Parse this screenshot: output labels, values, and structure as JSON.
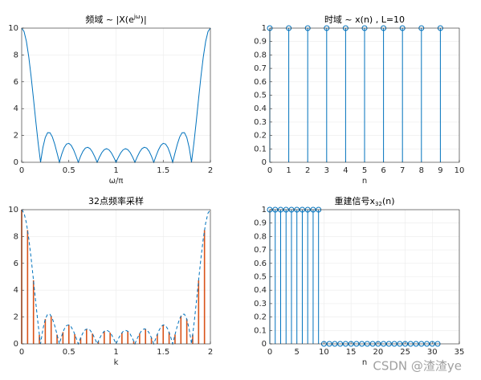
{
  "chart_data": [
    {
      "type": "line",
      "title": [
        "频域 ~ |X(e",
        "jω",
        ")|"
      ],
      "xlabel": "ω/π",
      "xlim": [
        0,
        2
      ],
      "xticks": [
        0,
        0.5,
        1,
        1.5,
        2
      ],
      "ylim": [
        0,
        10
      ],
      "yticks": [
        0,
        2,
        4,
        6,
        8,
        10
      ],
      "grid": true,
      "series": [
        {
          "type": "line",
          "color": "#0072BD",
          "linestyle": "solid",
          "x": [
            0,
            0.025,
            0.05,
            0.075,
            0.1,
            0.125,
            0.15,
            0.175,
            0.2,
            0.225,
            0.25,
            0.275,
            0.3,
            0.325,
            0.35,
            0.375,
            0.4,
            0.425,
            0.45,
            0.475,
            0.5,
            0.525,
            0.55,
            0.575,
            0.6,
            0.625,
            0.65,
            0.675,
            0.7,
            0.725,
            0.75,
            0.775,
            0.8,
            0.825,
            0.85,
            0.875,
            0.9,
            0.925,
            0.95,
            0.975,
            1,
            1.025,
            1.05,
            1.075,
            1.1,
            1.125,
            1.15,
            1.175,
            1.2,
            1.225,
            1.25,
            1.275,
            1.3,
            1.325,
            1.35,
            1.375,
            1.4,
            1.425,
            1.45,
            1.475,
            1.5,
            1.525,
            1.55,
            1.575,
            1.6,
            1.625,
            1.65,
            1.675,
            1.7,
            1.725,
            1.75,
            1.775,
            1.8,
            1.825,
            1.85,
            1.875,
            1.9,
            1.925,
            1.95,
            1.975,
            2
          ],
          "values": [
            10,
            9.748,
            9.012,
            7.86,
            6.392,
            4.736,
            3.029,
            1.41,
            0,
            1.106,
            1.848,
            2.207,
            2.203,
            1.891,
            1.353,
            0.689,
            0,
            0.618,
            1.089,
            1.361,
            1.414,
            1.258,
            0.93,
            0.487,
            0,
            0.46,
            0.829,
            1.059,
            1.122,
            1.017,
            0.765,
            0.408,
            0,
            0.398,
            0.727,
            0.942,
            1.012,
            0.93,
            0.709,
            0.383,
            0,
            0.383,
            0.709,
            0.93,
            1.012,
            0.942,
            0.727,
            0.398,
            0,
            0.408,
            0.765,
            1.017,
            1.122,
            1.059,
            0.829,
            0.46,
            0,
            0.487,
            0.93,
            1.258,
            1.414,
            1.361,
            1.089,
            0.618,
            0,
            0.689,
            1.353,
            1.891,
            2.203,
            2.207,
            1.848,
            1.106,
            0,
            1.41,
            3.029,
            4.736,
            6.392,
            7.86,
            9.012,
            9.748,
            10
          ]
        }
      ]
    },
    {
      "type": "stem",
      "title": [
        "时域 ~ x(n) , L=10"
      ],
      "xlabel": "n",
      "xlim": [
        0,
        10
      ],
      "xticks": [
        0,
        1,
        2,
        3,
        4,
        5,
        6,
        7,
        8,
        9,
        10
      ],
      "ylim": [
        0,
        1
      ],
      "yticks": [
        0,
        0.1,
        0.2,
        0.3,
        0.4,
        0.5,
        0.6,
        0.7,
        0.8,
        0.9,
        1
      ],
      "grid": true,
      "series": [
        {
          "type": "stem",
          "color": "#0072BD",
          "marker": "circle",
          "x": [
            0,
            1,
            2,
            3,
            4,
            5,
            6,
            7,
            8,
            9
          ],
          "values": [
            1,
            1,
            1,
            1,
            1,
            1,
            1,
            1,
            1,
            1
          ]
        }
      ]
    },
    {
      "type": "stem",
      "title": [
        "32点频率采样"
      ],
      "xlabel": "k",
      "xlim": [
        0,
        2
      ],
      "xticks": [
        0,
        0.5,
        1,
        1.5,
        2
      ],
      "ylim": [
        0,
        10
      ],
      "yticks": [
        0,
        2,
        4,
        6,
        8,
        10
      ],
      "grid": true,
      "series": [
        {
          "type": "stem",
          "color": "#D95319",
          "marker": "none",
          "x": [
            0,
            0.0625,
            0.125,
            0.1875,
            0.25,
            0.3125,
            0.375,
            0.4375,
            0.5,
            0.5625,
            0.625,
            0.6875,
            0.75,
            0.8125,
            0.875,
            0.9375,
            1,
            1.0625,
            1.125,
            1.1875,
            1.25,
            1.3125,
            1.375,
            1.4375,
            1.5,
            1.5625,
            1.625,
            1.6875,
            1.75,
            1.8125,
            1.875,
            1.9375
          ],
          "values": [
            10,
            8.483,
            4.736,
            0.672,
            1.848,
            2.081,
            0.689,
            0.876,
            1.414,
            0.719,
            0.46,
            1.112,
            0.765,
            0.204,
            0.942,
            0.836,
            0,
            0.836,
            0.942,
            0.204,
            0.765,
            1.112,
            0.46,
            0.719,
            1.414,
            0.876,
            0.689,
            2.081,
            1.848,
            0.672,
            4.736,
            8.483
          ]
        },
        {
          "type": "line",
          "color": "#0072BD",
          "linestyle": "dashed",
          "x": [
            0,
            0.025,
            0.05,
            0.075,
            0.1,
            0.125,
            0.15,
            0.175,
            0.2,
            0.225,
            0.25,
            0.275,
            0.3,
            0.325,
            0.35,
            0.375,
            0.4,
            0.425,
            0.45,
            0.475,
            0.5,
            0.525,
            0.55,
            0.575,
            0.6,
            0.625,
            0.65,
            0.675,
            0.7,
            0.725,
            0.75,
            0.775,
            0.8,
            0.825,
            0.85,
            0.875,
            0.9,
            0.925,
            0.95,
            0.975,
            1,
            1.025,
            1.05,
            1.075,
            1.1,
            1.125,
            1.15,
            1.175,
            1.2,
            1.225,
            1.25,
            1.275,
            1.3,
            1.325,
            1.35,
            1.375,
            1.4,
            1.425,
            1.45,
            1.475,
            1.5,
            1.525,
            1.55,
            1.575,
            1.6,
            1.625,
            1.65,
            1.675,
            1.7,
            1.725,
            1.75,
            1.775,
            1.8,
            1.825,
            1.85,
            1.875,
            1.9,
            1.925,
            1.95,
            1.975,
            2
          ],
          "values": [
            10,
            9.748,
            9.012,
            7.86,
            6.392,
            4.736,
            3.029,
            1.41,
            0,
            1.106,
            1.848,
            2.207,
            2.203,
            1.891,
            1.353,
            0.689,
            0,
            0.618,
            1.089,
            1.361,
            1.414,
            1.258,
            0.93,
            0.487,
            0,
            0.46,
            0.829,
            1.059,
            1.122,
            1.017,
            0.765,
            0.408,
            0,
            0.398,
            0.727,
            0.942,
            1.012,
            0.93,
            0.709,
            0.383,
            0,
            0.383,
            0.709,
            0.93,
            1.012,
            0.942,
            0.727,
            0.398,
            0,
            0.408,
            0.765,
            1.017,
            1.122,
            1.059,
            0.829,
            0.46,
            0,
            0.487,
            0.93,
            1.258,
            1.414,
            1.361,
            1.089,
            0.618,
            0,
            0.689,
            1.353,
            1.891,
            2.203,
            2.207,
            1.848,
            1.106,
            0,
            1.41,
            3.029,
            4.736,
            6.392,
            7.86,
            9.012,
            9.748,
            10
          ]
        }
      ]
    },
    {
      "type": "stem",
      "title": [
        "重建信号x",
        "32",
        "(n)"
      ],
      "xlabel": "n",
      "xlim": [
        0,
        35
      ],
      "xticks": [
        0,
        5,
        10,
        15,
        20,
        25,
        30,
        35
      ],
      "ylim": [
        0,
        1
      ],
      "yticks": [
        0,
        0.1,
        0.2,
        0.3,
        0.4,
        0.5,
        0.6,
        0.7,
        0.8,
        0.9,
        1
      ],
      "grid": true,
      "series": [
        {
          "type": "stem",
          "color": "#0072BD",
          "marker": "circle",
          "x": [
            0,
            1,
            2,
            3,
            4,
            5,
            6,
            7,
            8,
            9,
            10,
            11,
            12,
            13,
            14,
            15,
            16,
            17,
            18,
            19,
            20,
            21,
            22,
            23,
            24,
            25,
            26,
            27,
            28,
            29,
            30,
            31
          ],
          "values": [
            1,
            1,
            1,
            1,
            1,
            1,
            1,
            1,
            1,
            1,
            0,
            0,
            0,
            0,
            0,
            0,
            0,
            0,
            0,
            0,
            0,
            0,
            0,
            0,
            0,
            0,
            0,
            0,
            0,
            0,
            0,
            0
          ]
        }
      ]
    }
  ],
  "watermark": "CSDN @渣渣ye"
}
